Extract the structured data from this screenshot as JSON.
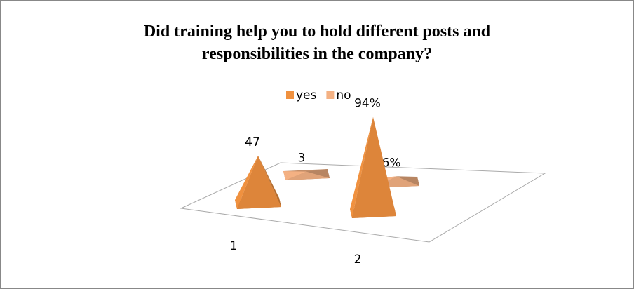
{
  "chart_data": {
    "type": "pyramid",
    "title": "Did training help you to hold different posts and responsibilities in the company?",
    "title_lines": [
      "Did training help you to hold different posts and",
      "responsibilities in the company?"
    ],
    "categories": [
      "1",
      "2"
    ],
    "series": [
      {
        "name": "yes",
        "color": "#f0913f",
        "values": [
          47,
          94
        ],
        "value_labels": [
          "47",
          "94%"
        ]
      },
      {
        "name": "no",
        "color": "#f4b183",
        "values": [
          3,
          6
        ],
        "value_labels": [
          "3",
          "6%"
        ]
      }
    ]
  }
}
